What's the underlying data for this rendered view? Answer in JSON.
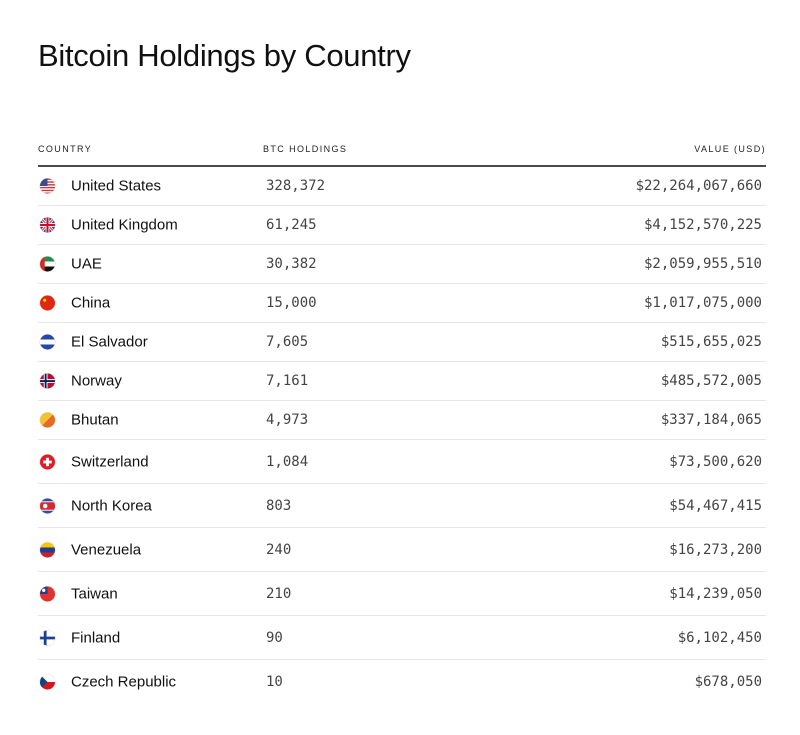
{
  "title": "Bitcoin Holdings by Country",
  "headers": {
    "country": "COUNTRY",
    "btc": "BTC HOLDINGS",
    "value": "VALUE (USD)"
  },
  "rows": [
    {
      "country": "United States",
      "btc": "328,372",
      "value": "$22,264,067,660",
      "flag": "us-flag-icon"
    },
    {
      "country": "United Kingdom",
      "btc": "61,245",
      "value": "$4,152,570,225",
      "flag": "uk-flag-icon"
    },
    {
      "country": "UAE",
      "btc": "30,382",
      "value": "$2,059,955,510",
      "flag": "uae-flag-icon"
    },
    {
      "country": "China",
      "btc": "15,000",
      "value": "$1,017,075,000",
      "flag": "china-flag-icon"
    },
    {
      "country": "El Salvador",
      "btc": "7,605",
      "value": "$515,655,025",
      "flag": "el-salvador-flag-icon"
    },
    {
      "country": "Norway",
      "btc": "7,161",
      "value": "$485,572,005",
      "flag": "norway-flag-icon"
    },
    {
      "country": "Bhutan",
      "btc": "4,973",
      "value": "$337,184,065",
      "flag": "bhutan-flag-icon"
    },
    {
      "country": "Switzerland",
      "btc": "1,084",
      "value": "$73,500,620",
      "flag": "switzerland-flag-icon"
    },
    {
      "country": "North Korea",
      "btc": "803",
      "value": "$54,467,415",
      "flag": "north-korea-flag-icon"
    },
    {
      "country": "Venezuela",
      "btc": "240",
      "value": "$16,273,200",
      "flag": "venezuela-flag-icon"
    },
    {
      "country": "Taiwan",
      "btc": "210",
      "value": "$14,239,050",
      "flag": "taiwan-flag-icon"
    },
    {
      "country": "Finland",
      "btc": "90",
      "value": "$6,102,450",
      "flag": "finland-flag-icon"
    },
    {
      "country": "Czech Republic",
      "btc": "10",
      "value": "$678,050",
      "flag": "czech-flag-icon"
    }
  ],
  "chart_data": {
    "type": "table",
    "title": "Bitcoin Holdings by Country",
    "columns": [
      "COUNTRY",
      "BTC HOLDINGS",
      "VALUE (USD)"
    ],
    "categories": [
      "United States",
      "United Kingdom",
      "UAE",
      "China",
      "El Salvador",
      "Norway",
      "Bhutan",
      "Switzerland",
      "North Korea",
      "Venezuela",
      "Taiwan",
      "Finland",
      "Czech Republic"
    ],
    "series": [
      {
        "name": "BTC HOLDINGS",
        "values": [
          328372,
          61245,
          30382,
          15000,
          7605,
          7161,
          4973,
          1084,
          803,
          240,
          210,
          90,
          10
        ]
      },
      {
        "name": "VALUE (USD)",
        "values": [
          22264067660,
          4152570225,
          2059955510,
          1017075000,
          515655025,
          485572005,
          337184065,
          73500620,
          54467415,
          16273200,
          14239050,
          6102450,
          678050
        ]
      }
    ]
  }
}
